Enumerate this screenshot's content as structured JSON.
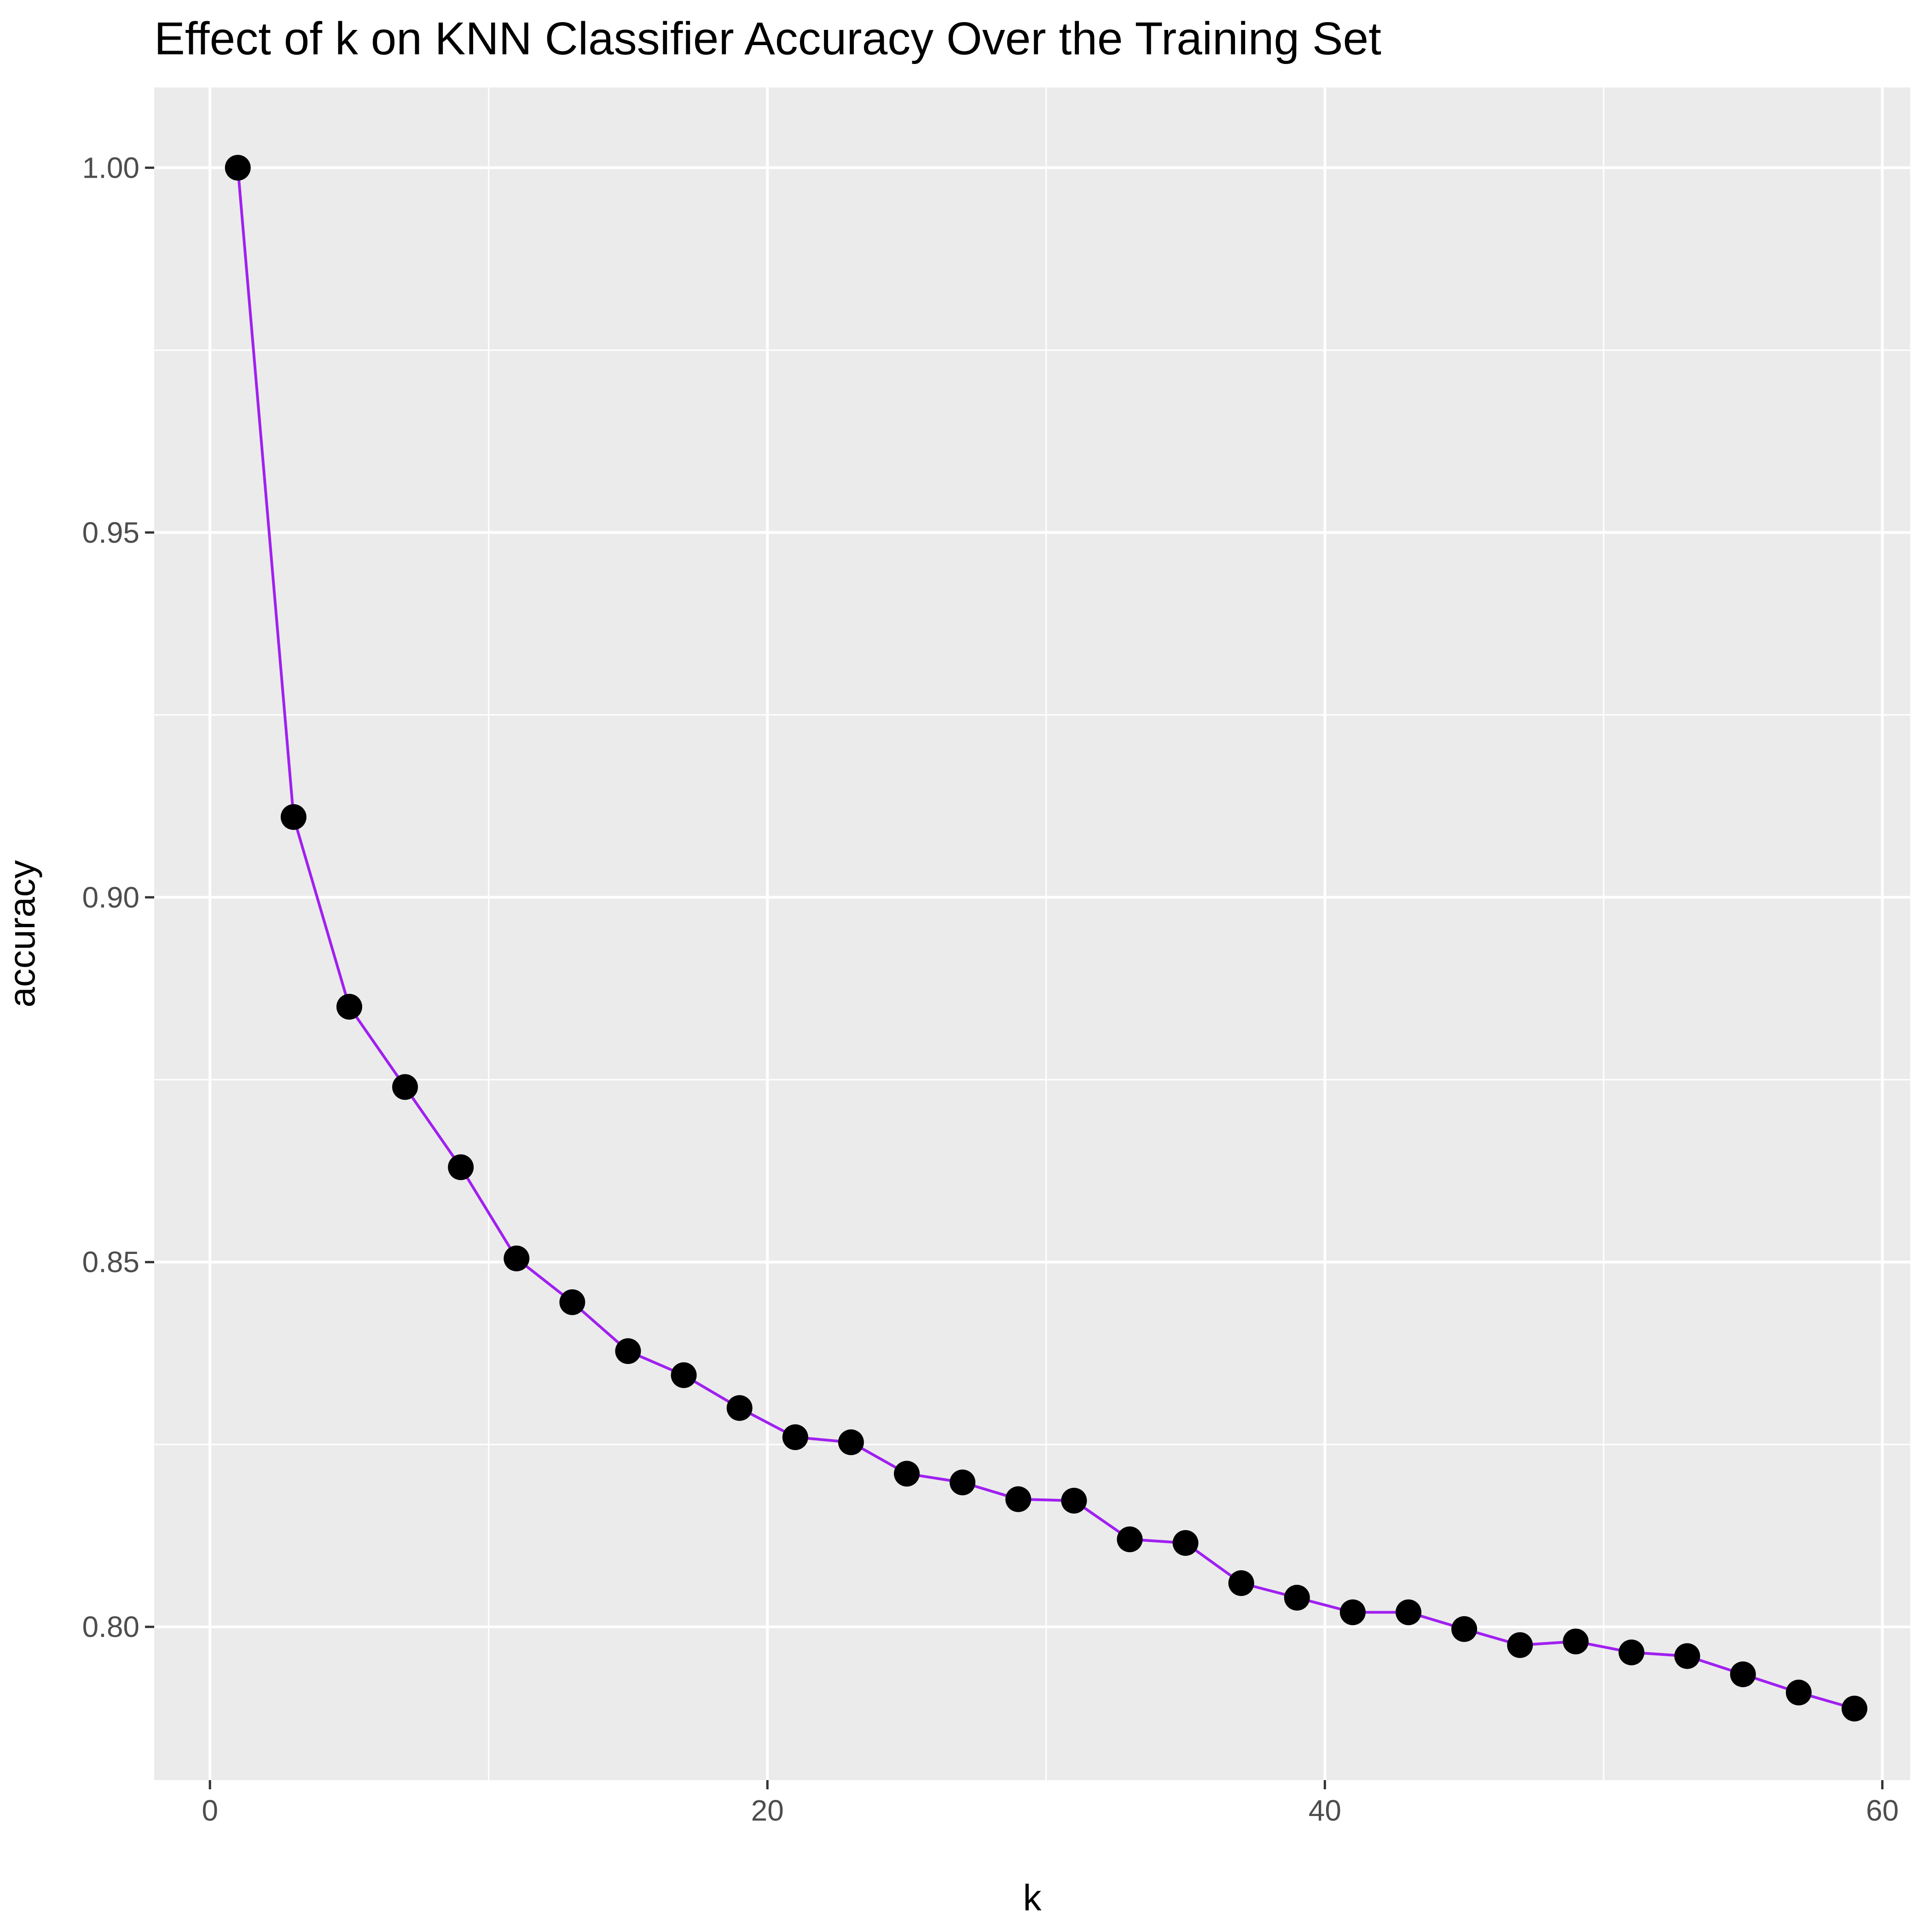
{
  "chart_data": {
    "type": "line",
    "title": "Effect of k on KNN Classifier Accuracy Over the Training Set",
    "xlabel": "k",
    "ylabel": "accuracy",
    "xlim": [
      -2,
      61
    ],
    "ylim": [
      0.779,
      1.011
    ],
    "x_ticks": [
      0,
      20,
      40,
      60
    ],
    "x_tick_labels": [
      "0",
      "20",
      "40",
      "60"
    ],
    "y_ticks": [
      0.8,
      0.85,
      0.9,
      0.95,
      1.0
    ],
    "y_tick_labels": [
      "0.80",
      "0.85",
      "0.90",
      "0.95",
      "1.00"
    ],
    "grid": true,
    "colors": {
      "panel_background": "#ebebeb",
      "grid": "#ffffff",
      "line": "#a020f0",
      "points": "#000000"
    },
    "series": [
      {
        "x": [
          1,
          3,
          5,
          7,
          9,
          11,
          13,
          15,
          17,
          19,
          21,
          23,
          25,
          27,
          29,
          31,
          33,
          35,
          37,
          39,
          41,
          43,
          45,
          47,
          49,
          51,
          53,
          55,
          57,
          59
        ],
        "values": [
          1.0,
          0.911,
          0.885,
          0.874,
          0.863,
          0.8505,
          0.8445,
          0.8378,
          0.8345,
          0.83,
          0.826,
          0.8253,
          0.821,
          0.8198,
          0.8175,
          0.8173,
          0.812,
          0.8115,
          0.806,
          0.804,
          0.802,
          0.802,
          0.7997,
          0.7975,
          0.798,
          0.7965,
          0.796,
          0.7935,
          0.791,
          0.7888
        ]
      }
    ]
  }
}
